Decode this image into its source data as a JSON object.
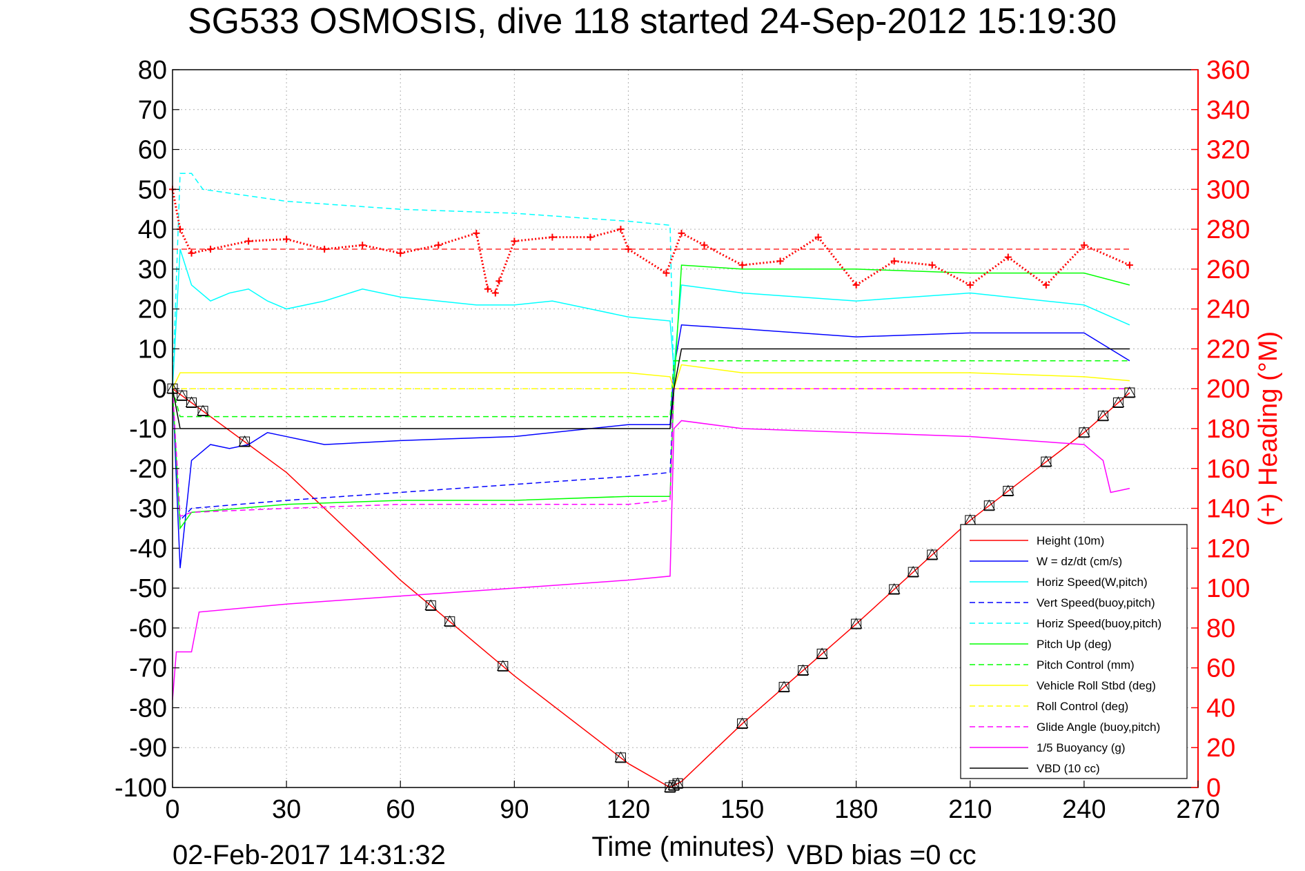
{
  "chart_data": {
    "type": "line",
    "title": "SG533 OSMOSIS, dive 118 started 24-Sep-2012 15:19:30",
    "xlabel": "Time (minutes)",
    "ylabel_right": "(+) Heading (°M)",
    "footer_date": "02-Feb-2017 14:31:32",
    "footer_note": "VBD bias =0 cc",
    "xlim": [
      0,
      270
    ],
    "ylim": [
      -100,
      80
    ],
    "y2lim": [
      0,
      360
    ],
    "x_ticks": [
      "0",
      "30",
      "60",
      "90",
      "120",
      "150",
      "180",
      "210",
      "240",
      "270"
    ],
    "y_ticks": [
      "80",
      "70",
      "60",
      "50",
      "40",
      "30",
      "20",
      "10",
      "0",
      "-10",
      "-20",
      "-30",
      "-40",
      "-50",
      "-60",
      "-70",
      "-80",
      "-90",
      "-100"
    ],
    "y2_ticks": [
      "360",
      "340",
      "320",
      "300",
      "280",
      "260",
      "240",
      "220",
      "200",
      "180",
      "160",
      "140",
      "120",
      "100",
      "80",
      "60",
      "40",
      "20",
      "0"
    ],
    "grid": true,
    "legend_position": "bottom-right",
    "colors": {
      "red": "#ff0000",
      "blue": "#0000ff",
      "cyan": "#00ffff",
      "green": "#00ff00",
      "yellow": "#ffff00",
      "magenta": "#ff00ff",
      "black": "#000000",
      "grid": "#b0b0b0"
    },
    "series": [
      {
        "name": "Height (10m)",
        "color": "#ff0000",
        "style": "solid",
        "x": [
          0,
          30,
          60,
          90,
          120,
          131,
          134,
          150,
          180,
          210,
          240,
          252
        ],
        "y": [
          0,
          -21,
          -48,
          -72,
          -94,
          -100,
          -98.5,
          -84,
          -59,
          -33,
          -11,
          -1
        ]
      },
      {
        "name": "W = dz/dt (cm/s)",
        "color": "#0000ff",
        "style": "solid",
        "x": [
          0,
          2,
          5,
          10,
          15,
          20,
          25,
          30,
          40,
          60,
          90,
          120,
          131,
          132,
          134,
          150,
          180,
          210,
          240,
          252
        ],
        "y": [
          0,
          -45,
          -18,
          -14,
          -15,
          -14,
          -11,
          -12,
          -14,
          -13,
          -12,
          -9,
          -9,
          5,
          16,
          15,
          13,
          14,
          14,
          7
        ]
      },
      {
        "name": "Horiz Speed(W,pitch)",
        "color": "#00ffff",
        "style": "solid",
        "x": [
          0,
          2,
          5,
          10,
          15,
          20,
          25,
          30,
          40,
          50,
          60,
          70,
          80,
          90,
          100,
          110,
          120,
          131,
          132,
          134,
          150,
          180,
          210,
          240,
          252
        ],
        "y": [
          0,
          35,
          26,
          22,
          24,
          25,
          22,
          20,
          22,
          25,
          23,
          22,
          21,
          21,
          22,
          20,
          18,
          17,
          5,
          26,
          24,
          22,
          24,
          21,
          16
        ]
      },
      {
        "name": "Vert Speed(buoy,pitch)",
        "color": "#0000ff",
        "style": "dashed",
        "x": [
          0,
          2,
          5,
          30,
          60,
          90,
          120,
          131,
          132,
          134,
          252
        ],
        "y": [
          0,
          -33,
          -30,
          -28,
          -26,
          -24,
          -22,
          -21,
          0,
          0,
          0
        ]
      },
      {
        "name": "Horiz Speed(buoy,pitch)",
        "color": "#00ffff",
        "style": "dashed",
        "x": [
          0,
          2,
          5,
          8,
          30,
          60,
          90,
          120,
          131,
          132,
          134,
          252
        ],
        "y": [
          0,
          54,
          54,
          50,
          47,
          45,
          44,
          42,
          41,
          0,
          0,
          0
        ]
      },
      {
        "name": "Pitch Up (deg)",
        "color": "#00ff00",
        "style": "solid",
        "x": [
          0,
          2,
          5,
          30,
          60,
          90,
          120,
          131,
          132,
          134,
          150,
          180,
          210,
          240,
          252
        ],
        "y": [
          0,
          -35,
          -31,
          -29,
          -28,
          -28,
          -27,
          -27,
          0,
          31,
          30,
          30,
          29,
          29,
          26
        ]
      },
      {
        "name": "Pitch Control (mm)",
        "color": "#00ff00",
        "style": "dashed",
        "x": [
          0,
          2,
          131,
          132,
          252
        ],
        "y": [
          0,
          -7,
          -7,
          7,
          7
        ]
      },
      {
        "name": "Vehicle Roll Stbd (deg)",
        "color": "#ffff00",
        "style": "solid",
        "x": [
          0,
          2,
          5,
          20,
          60,
          90,
          120,
          131,
          132,
          134,
          150,
          180,
          210,
          240,
          252
        ],
        "y": [
          0,
          4,
          4,
          4,
          4,
          4,
          4,
          3,
          0,
          6,
          4,
          4,
          4,
          3,
          2
        ]
      },
      {
        "name": "Roll Control (deg)",
        "color": "#ffff00",
        "style": "dashed",
        "x": [
          0,
          252
        ],
        "y": [
          0,
          0
        ]
      },
      {
        "name": "Glide Angle (buoy,pitch)",
        "color": "#ff00ff",
        "style": "dashed",
        "x": [
          0,
          2,
          5,
          30,
          60,
          90,
          120,
          131,
          132,
          134,
          252
        ],
        "y": [
          0,
          -32,
          -31,
          -30,
          -29,
          -29,
          -29,
          -28,
          0,
          0,
          0
        ]
      },
      {
        "name": "1/5 Buoyancy (g)",
        "color": "#ff00ff",
        "style": "solid",
        "x": [
          0,
          1,
          5,
          7,
          30,
          60,
          90,
          120,
          131,
          132,
          134,
          150,
          180,
          210,
          240,
          245,
          247,
          252
        ],
        "y": [
          -78,
          -66,
          -66,
          -56,
          -54,
          -52,
          -50,
          -48,
          -47,
          -10,
          -8,
          -10,
          -11,
          -12,
          -14,
          -18,
          -26,
          -25
        ]
      },
      {
        "name": "VBD (10 cc)",
        "color": "#000000",
        "style": "solid",
        "x": [
          0,
          2,
          131,
          132,
          134,
          252
        ],
        "y": [
          0,
          -10,
          -10,
          0,
          10,
          10
        ]
      }
    ],
    "heading_series": {
      "name": "Heading",
      "color": "#ff0000",
      "x": [
        0,
        2,
        5,
        10,
        20,
        30,
        40,
        50,
        60,
        70,
        80,
        83,
        85,
        86,
        90,
        100,
        110,
        118,
        120,
        130,
        134,
        140,
        150,
        160,
        170,
        180,
        190,
        200,
        210,
        220,
        230,
        240,
        252
      ],
      "y": [
        300,
        280,
        268,
        270,
        274,
        275,
        270,
        272,
        268,
        272,
        278,
        250,
        248,
        254,
        274,
        276,
        276,
        280,
        270,
        258,
        278,
        272,
        262,
        264,
        276,
        252,
        264,
        262,
        252,
        266,
        252,
        272,
        262
      ],
      "target": 270
    },
    "depth_markers_x": [
      0,
      2.5,
      5,
      8,
      19,
      68,
      73,
      87,
      118,
      131,
      132,
      133,
      150,
      161,
      166,
      171,
      180,
      190,
      195,
      200,
      210,
      215,
      220,
      230,
      240,
      245,
      249,
      252
    ]
  }
}
